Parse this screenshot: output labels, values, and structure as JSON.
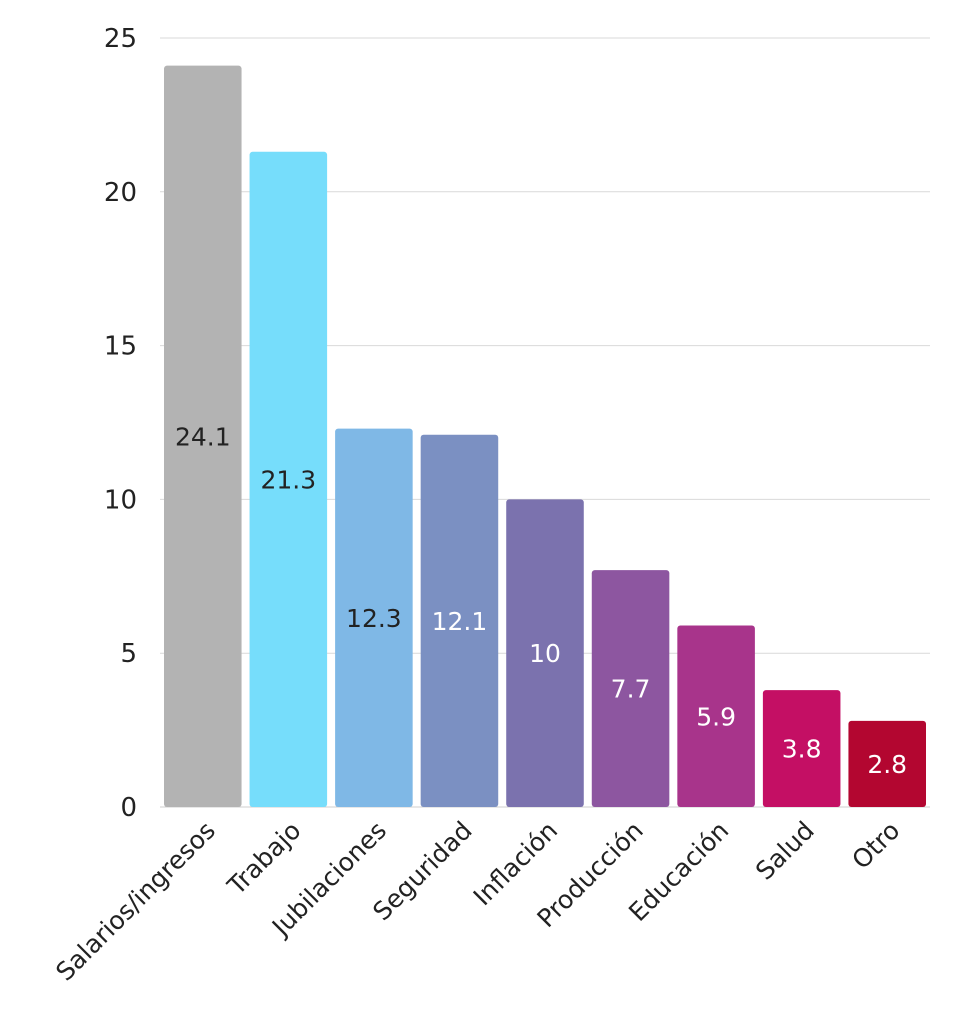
{
  "chart_data": {
    "type": "bar",
    "categories": [
      "Salarios/ingresos",
      "Trabajo",
      "Jubilaciones",
      "Seguridad",
      "Inflación",
      "Producción",
      "Educación",
      "Salud",
      "Otro"
    ],
    "values": [
      24.1,
      21.3,
      12.3,
      12.1,
      10,
      7.7,
      5.9,
      3.8,
      2.8
    ],
    "value_labels": [
      "24.1",
      "21.3",
      "12.3",
      "12.1",
      "10",
      "7.7",
      "5.9",
      "3.8",
      "2.8"
    ],
    "colors": [
      "#b3b3b3",
      "#76ddfb",
      "#7fb8e6",
      "#7b90c2",
      "#7b72ae",
      "#8d56a0",
      "#a8348b",
      "#c40f64",
      "#b30630"
    ],
    "label_colors": [
      "#222222",
      "#222222",
      "#222222",
      "#ffffff",
      "#ffffff",
      "#ffffff",
      "#ffffff",
      "#ffffff",
      "#ffffff"
    ],
    "ylim": [
      0,
      25
    ],
    "yticks": [
      "0",
      "5",
      "10",
      "15",
      "20",
      "25"
    ],
    "ytick_values": [
      0,
      5,
      10,
      15,
      20,
      25
    ],
    "grid": true,
    "title": "",
    "xlabel": "",
    "ylabel": ""
  }
}
